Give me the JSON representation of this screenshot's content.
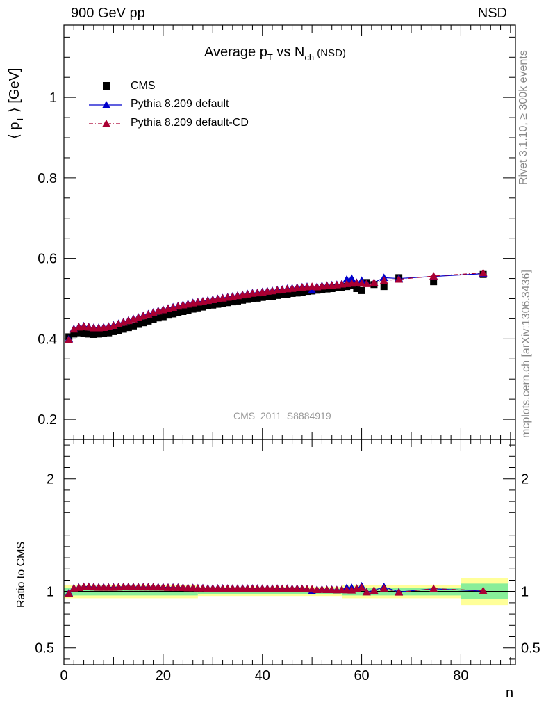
{
  "header": {
    "left": "900 GeV pp",
    "right": "NSD"
  },
  "side_labels": {
    "rivet": "Rivet 3.1.10, ≥ 300k events",
    "mcplots": "mcplots.cern.ch [arXiv:1306.3436]"
  },
  "chart_data": {
    "type": "scatter",
    "title_main": "Average p",
    "title_sub_t": "T",
    "title_vs": " vs N",
    "title_sub_ch": "ch",
    "title_tail": " (NSD)",
    "ylabel_main": "⟨ p",
    "ylabel_sub": "T",
    "ylabel_tail": " ⟩ [GeV]",
    "xlabel": "n",
    "ratio_ylabel": "Ratio to CMS",
    "analysis_tag": "CMS_2011_S8884919",
    "xlim": [
      0,
      91
    ],
    "ylim": [
      0.15,
      1.18
    ],
    "ratio_ylim": [
      0.35,
      2.35
    ],
    "x_ticks": [
      0,
      20,
      40,
      60,
      80
    ],
    "y_ticks": [
      0.2,
      0.4,
      0.6,
      0.8,
      1
    ],
    "ratio_ticks": [
      0.5,
      1,
      2
    ],
    "x_tick_labels": [
      "0",
      "20",
      "40",
      "60",
      "80"
    ],
    "y_tick_labels": [
      "0.2",
      "0.4",
      "0.6",
      "0.8",
      "1"
    ],
    "ratio_tick_labels_left": [
      "0.5",
      "1",
      "2"
    ],
    "ratio_tick_labels_right": [
      "0.5",
      "1",
      "2"
    ],
    "colors": {
      "cms": "#000000",
      "default": "#0000cc",
      "cd": "#aa0033",
      "band_inner": "#88ee99",
      "band_outer": "#ffff99"
    },
    "series": [
      {
        "name": "CMS",
        "x": [
          1,
          2,
          3,
          4,
          5,
          6,
          7,
          8,
          9,
          10,
          11,
          12,
          13,
          14,
          15,
          16,
          17,
          18,
          19,
          20,
          21,
          22,
          23,
          24,
          25,
          26,
          27,
          28,
          29,
          30,
          31,
          32,
          33,
          34,
          35,
          36,
          37,
          38,
          39,
          40,
          41,
          42,
          43,
          44,
          45,
          46,
          47,
          48,
          49,
          50,
          51,
          52,
          53,
          54,
          55,
          56,
          57,
          58,
          59,
          60,
          61,
          62.5,
          64.5,
          67.5,
          74.5,
          84.5
        ],
        "y": [
          0.405,
          0.412,
          0.415,
          0.414,
          0.412,
          0.411,
          0.412,
          0.413,
          0.415,
          0.418,
          0.421,
          0.424,
          0.428,
          0.432,
          0.436,
          0.44,
          0.444,
          0.448,
          0.452,
          0.455,
          0.459,
          0.462,
          0.465,
          0.468,
          0.471,
          0.474,
          0.477,
          0.479,
          0.482,
          0.484,
          0.486,
          0.488,
          0.49,
          0.492,
          0.494,
          0.496,
          0.498,
          0.5,
          0.501,
          0.503,
          0.505,
          0.506,
          0.508,
          0.51,
          0.511,
          0.513,
          0.514,
          0.516,
          0.518,
          0.519,
          0.521,
          0.522,
          0.524,
          0.525,
          0.527,
          0.528,
          0.53,
          0.532,
          0.525,
          0.52,
          0.54,
          0.535,
          0.53,
          0.552,
          0.542,
          0.56
        ]
      },
      {
        "name": "Pythia 8.209 default",
        "x": [
          1,
          2,
          3,
          4,
          5,
          6,
          7,
          8,
          9,
          10,
          11,
          12,
          13,
          14,
          15,
          16,
          17,
          18,
          19,
          20,
          21,
          22,
          23,
          24,
          25,
          26,
          27,
          28,
          29,
          30,
          31,
          32,
          33,
          34,
          35,
          36,
          37,
          38,
          39,
          40,
          41,
          42,
          43,
          44,
          45,
          46,
          47,
          48,
          49,
          50,
          51,
          52,
          53,
          54,
          55,
          56,
          57,
          58,
          59,
          60,
          61,
          62.5,
          64.5,
          67.5,
          74.5,
          84.5
        ],
        "y": [
          0.4,
          0.425,
          0.43,
          0.432,
          0.43,
          0.428,
          0.428,
          0.429,
          0.431,
          0.434,
          0.438,
          0.442,
          0.446,
          0.45,
          0.454,
          0.458,
          0.462,
          0.466,
          0.47,
          0.473,
          0.476,
          0.479,
          0.482,
          0.485,
          0.487,
          0.49,
          0.492,
          0.494,
          0.496,
          0.498,
          0.5,
          0.502,
          0.504,
          0.506,
          0.508,
          0.51,
          0.512,
          0.514,
          0.515,
          0.517,
          0.519,
          0.52,
          0.522,
          0.523,
          0.525,
          0.526,
          0.528,
          0.529,
          0.53,
          0.521,
          0.53,
          0.532,
          0.533,
          0.534,
          0.535,
          0.537,
          0.548,
          0.55,
          0.54,
          0.545,
          0.538,
          0.54,
          0.552,
          0.55,
          0.555,
          0.562
        ]
      },
      {
        "name": "Pythia 8.209 default-CD",
        "x": [
          1,
          2,
          3,
          4,
          5,
          6,
          7,
          8,
          9,
          10,
          11,
          12,
          13,
          14,
          15,
          16,
          17,
          18,
          19,
          20,
          21,
          22,
          23,
          24,
          25,
          26,
          27,
          28,
          29,
          30,
          31,
          32,
          33,
          34,
          35,
          36,
          37,
          38,
          39,
          40,
          41,
          42,
          43,
          44,
          45,
          46,
          47,
          48,
          49,
          50,
          51,
          52,
          53,
          54,
          55,
          56,
          57,
          58,
          59,
          60,
          61,
          62.5,
          64.5,
          67.5,
          74.5,
          84.5
        ],
        "y": [
          0.398,
          0.424,
          0.429,
          0.431,
          0.429,
          0.427,
          0.427,
          0.428,
          0.43,
          0.433,
          0.437,
          0.441,
          0.445,
          0.449,
          0.453,
          0.457,
          0.461,
          0.465,
          0.469,
          0.472,
          0.475,
          0.478,
          0.481,
          0.484,
          0.486,
          0.489,
          0.491,
          0.493,
          0.495,
          0.497,
          0.499,
          0.501,
          0.503,
          0.505,
          0.507,
          0.509,
          0.511,
          0.513,
          0.514,
          0.516,
          0.518,
          0.519,
          0.521,
          0.522,
          0.524,
          0.525,
          0.527,
          0.528,
          0.529,
          0.53,
          0.529,
          0.531,
          0.532,
          0.533,
          0.534,
          0.536,
          0.537,
          0.538,
          0.539,
          0.538,
          0.537,
          0.54,
          0.545,
          0.548,
          0.556,
          0.564
        ]
      }
    ]
  }
}
